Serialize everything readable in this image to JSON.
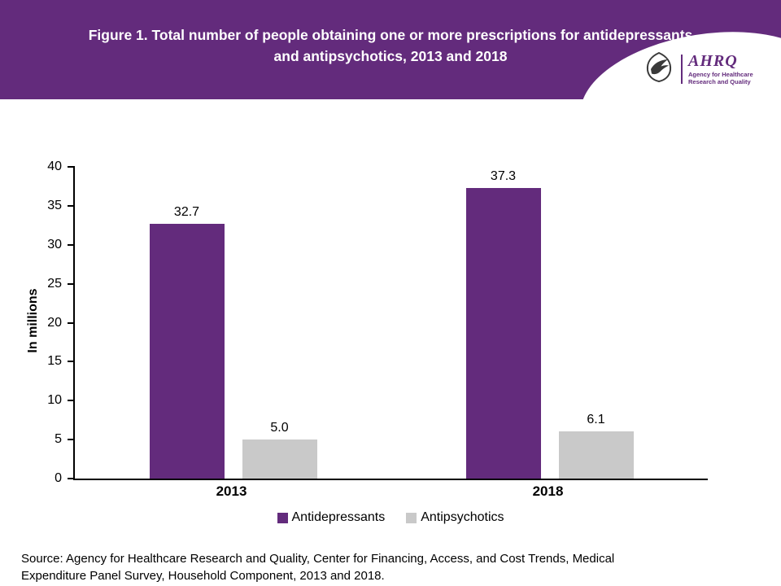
{
  "header": {
    "title": "Figure 1. Total number of people obtaining one or more prescriptions for antidepressants and antipsychotics, 2013 and 2018",
    "logo": {
      "name": "AHRQ",
      "subtitle": "Agency for Healthcare Research and Quality"
    }
  },
  "colors": {
    "banner_purple": "#632b7c",
    "bar_purple": "#632b7c",
    "bar_gray": "#c9c9c9"
  },
  "chart_data": {
    "type": "bar",
    "categories": [
      "2013",
      "2018"
    ],
    "series": [
      {
        "name": "Antidepressants",
        "values": [
          32.7,
          37.3
        ],
        "color": "#632b7c"
      },
      {
        "name": "Antipsychotics",
        "values": [
          5.0,
          6.1
        ],
        "color": "#c9c9c9"
      }
    ],
    "title": "Total number of people obtaining one or more prescriptions for antidepressants and antipsychotics, 2013 and 2018",
    "xlabel": "",
    "ylabel": "In millions",
    "ylim": [
      0,
      40
    ],
    "ytick_step": 5,
    "grid": false,
    "legend_position": "bottom"
  },
  "footer": {
    "source": "Source: Agency for Healthcare Research and Quality, Center for Financing, Access, and Cost Trends, Medical Expenditure Panel Survey, Household Component, 2013 and 2018."
  }
}
